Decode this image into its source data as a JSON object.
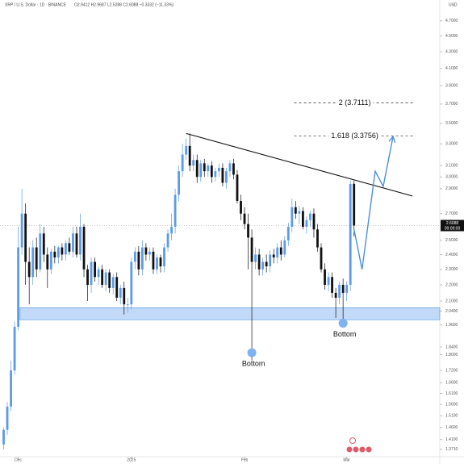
{
  "chart_data": {
    "type": "candlestick",
    "title": "XRP / U.S. Dollar · 1D · BINANCE",
    "ohlc_text": "O2.9412 H2.9687 L2.5288 C2.6088 −0.3332 (−11.33%)",
    "currency": "USD",
    "log_scale": true,
    "up_color": "#5b9bea",
    "down_color": "#111111",
    "accent_color": "#4a90e2",
    "xlim": [
      -1,
      119.5
    ],
    "ylim": [
      1.342,
      4.99
    ],
    "xticks": [
      {
        "value": 4,
        "label": "Dec"
      },
      {
        "value": 35,
        "label": "2025"
      },
      {
        "value": 66,
        "label": "Feb"
      },
      {
        "value": 94,
        "label": "Mar"
      }
    ],
    "yticks": [
      {
        "value": 4.7,
        "label": "4.7000"
      },
      {
        "value": 4.5,
        "label": "4.5000"
      },
      {
        "value": 4.3,
        "label": "4.3000"
      },
      {
        "value": 4.1,
        "label": "4.1000"
      },
      {
        "value": 3.9,
        "label": "3.9000"
      },
      {
        "value": 3.7,
        "label": "3.7000"
      },
      {
        "value": 3.5,
        "label": "3.5000"
      },
      {
        "value": 3.3,
        "label": "3.3000"
      },
      {
        "value": 3.1,
        "label": "3.1000"
      },
      {
        "value": 3.0,
        "label": "3.0000"
      },
      {
        "value": 2.9,
        "label": "2.9000"
      },
      {
        "value": 2.7,
        "label": "2.7000"
      },
      {
        "value": 2.5,
        "label": "2.5000"
      },
      {
        "value": 2.4,
        "label": "2.4000"
      },
      {
        "value": 2.3,
        "label": "2.3000"
      },
      {
        "value": 2.2,
        "label": "2.2000"
      },
      {
        "value": 2.1,
        "label": "2.1000"
      },
      {
        "value": 2.04,
        "label": "2.0400"
      },
      {
        "value": 1.96,
        "label": "1.9600"
      },
      {
        "value": 1.84,
        "label": "1.8400"
      },
      {
        "value": 1.8,
        "label": "1.8000"
      },
      {
        "value": 1.72,
        "label": "1.7200"
      },
      {
        "value": 1.66,
        "label": "1.6600"
      },
      {
        "value": 1.61,
        "label": "1.6100"
      },
      {
        "value": 1.56,
        "label": "1.5600"
      },
      {
        "value": 1.51,
        "label": "1.5100"
      },
      {
        "value": 1.46,
        "label": "1.4600"
      },
      {
        "value": 1.41,
        "label": "1.4100"
      },
      {
        "value": 1.371,
        "label": "1.3710"
      }
    ],
    "open": [
      1.39,
      1.45,
      1.55,
      1.72,
      1.95,
      2.45,
      2.7,
      2.35,
      2.25,
      2.45,
      2.3,
      2.55,
      2.4,
      2.3,
      2.42,
      2.38,
      2.45,
      2.4,
      2.48,
      2.42,
      2.55,
      2.4,
      2.6,
      2.3,
      2.2,
      2.35,
      2.25,
      2.3,
      2.2,
      2.28,
      2.18,
      2.25,
      2.12,
      2.18,
      2.08,
      2.08,
      2.35,
      2.42,
      2.3,
      2.45,
      2.4,
      2.42,
      2.3,
      2.38,
      2.32,
      2.45,
      2.55,
      2.6,
      2.85,
      3.05,
      3.2,
      3.28,
      3.1,
      3.15,
      3.0,
      3.12,
      3.05,
      3.1,
      3.0,
      3.05,
      3.08,
      2.95,
      3.05,
      3.12,
      3.02,
      2.8,
      2.7,
      2.62,
      2.52,
      2.35,
      2.4,
      2.3,
      2.35,
      2.32,
      2.4,
      2.38,
      2.45,
      2.4,
      2.5,
      2.6,
      2.75,
      2.7,
      2.72,
      2.6,
      2.65,
      2.7,
      2.58,
      2.45,
      2.3,
      2.2,
      2.25,
      2.15,
      2.12,
      2.2,
      2.15,
      2.2,
      2.9412
    ],
    "high": [
      1.46,
      1.57,
      1.77,
      1.98,
      2.6,
      2.9,
      2.78,
      2.45,
      2.5,
      2.52,
      2.62,
      2.6,
      2.45,
      2.44,
      2.46,
      2.46,
      2.48,
      2.5,
      2.52,
      2.6,
      2.6,
      2.7,
      2.62,
      2.33,
      2.38,
      2.38,
      2.32,
      2.33,
      2.3,
      2.3,
      2.27,
      2.28,
      2.2,
      2.22,
      2.12,
      2.38,
      2.45,
      2.46,
      2.5,
      2.48,
      2.45,
      2.45,
      2.4,
      2.4,
      2.48,
      2.58,
      2.7,
      2.9,
      3.1,
      3.3,
      3.35,
      3.4,
      3.2,
      3.2,
      3.15,
      3.16,
      3.12,
      3.14,
      3.08,
      3.12,
      3.12,
      3.08,
      3.15,
      3.16,
      3.06,
      2.85,
      2.75,
      2.7,
      2.58,
      2.45,
      2.44,
      2.38,
      2.4,
      2.43,
      2.44,
      2.48,
      2.5,
      2.53,
      2.63,
      2.82,
      2.8,
      2.76,
      2.75,
      2.68,
      2.72,
      2.74,
      2.62,
      2.48,
      2.34,
      2.28,
      2.28,
      2.18,
      2.22,
      2.24,
      2.22,
      2.97,
      2.9687
    ],
    "low": [
      1.37,
      1.43,
      1.53,
      1.7,
      1.93,
      2.4,
      2.2,
      2.08,
      2.2,
      2.25,
      2.28,
      2.35,
      2.18,
      2.27,
      2.34,
      2.34,
      2.36,
      2.36,
      2.4,
      2.38,
      2.38,
      2.36,
      2.25,
      2.1,
      2.15,
      2.22,
      2.2,
      2.18,
      2.16,
      2.15,
      2.14,
      2.1,
      2.08,
      2.02,
      2.03,
      2.05,
      2.3,
      2.26,
      2.26,
      2.36,
      2.36,
      2.27,
      2.27,
      2.28,
      2.28,
      2.42,
      2.5,
      2.55,
      2.8,
      3.0,
      3.15,
      3.05,
      3.05,
      2.95,
      2.96,
      3.0,
      3.0,
      2.95,
      2.96,
      3.0,
      2.92,
      2.9,
      3.0,
      2.98,
      2.78,
      2.65,
      2.58,
      2.3,
      1.77,
      2.3,
      2.26,
      2.26,
      2.28,
      2.28,
      2.34,
      2.34,
      2.36,
      2.38,
      2.46,
      2.56,
      2.66,
      2.62,
      2.58,
      2.55,
      2.6,
      2.52,
      2.42,
      2.28,
      2.17,
      2.16,
      2.12,
      2.0,
      2.08,
      1.97,
      2.1,
      2.16,
      2.5288
    ],
    "close": [
      1.45,
      1.55,
      1.72,
      1.95,
      2.45,
      2.7,
      2.35,
      2.25,
      2.45,
      2.3,
      2.55,
      2.4,
      2.3,
      2.42,
      2.38,
      2.45,
      2.4,
      2.48,
      2.42,
      2.55,
      2.4,
      2.6,
      2.3,
      2.2,
      2.35,
      2.25,
      2.3,
      2.2,
      2.28,
      2.18,
      2.25,
      2.12,
      2.18,
      2.08,
      2.08,
      2.35,
      2.42,
      2.3,
      2.45,
      2.4,
      2.42,
      2.3,
      2.38,
      2.32,
      2.45,
      2.55,
      2.6,
      2.85,
      3.05,
      3.2,
      3.28,
      3.1,
      3.15,
      3.0,
      3.12,
      3.05,
      3.1,
      3.0,
      3.05,
      3.08,
      2.95,
      3.05,
      3.12,
      3.02,
      2.8,
      2.7,
      2.62,
      2.52,
      2.35,
      2.4,
      2.3,
      2.35,
      2.32,
      2.4,
      2.38,
      2.45,
      2.4,
      2.5,
      2.6,
      2.75,
      2.7,
      2.72,
      2.6,
      2.65,
      2.7,
      2.58,
      2.45,
      2.3,
      2.2,
      2.25,
      2.15,
      2.12,
      2.2,
      2.15,
      2.2,
      2.94,
      2.6088
    ],
    "last_price": 2.6088,
    "countdown": "09:09:00",
    "trendline": {
      "x": [
        50,
        112
      ],
      "y": [
        3.4,
        2.84
      ]
    },
    "support_zone": {
      "x": [
        4.5,
        119.5
      ],
      "y": [
        1.99,
        2.06
      ]
    },
    "fib_x": [
      79.6,
      112.8
    ],
    "fib_levels": [
      {
        "label": "2 (3.7111)",
        "value": 3.7111
      },
      {
        "label": "1.618 (3.3756)",
        "value": 3.3756
      }
    ],
    "projection": {
      "x": [
        96,
        98.2,
        101.8,
        104,
        106.7
      ],
      "y": [
        2.58,
        2.3,
        3.05,
        2.92,
        3.37
      ]
    },
    "bottoms": [
      {
        "label": "Bottom",
        "x": 68,
        "y": 1.81
      },
      {
        "label": "Bottom",
        "x": 93,
        "y": 1.97
      }
    ]
  }
}
